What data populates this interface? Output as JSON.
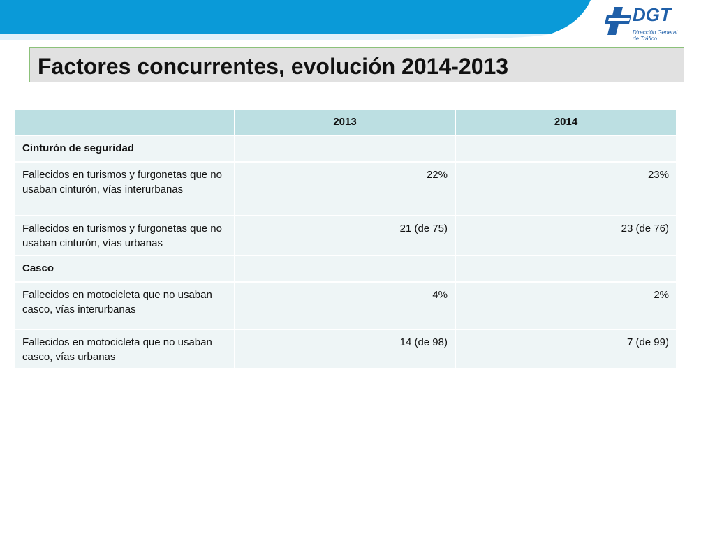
{
  "header": {
    "logo": {
      "text": "DGT",
      "subtitle_line1": "Dirección General",
      "subtitle_line2": "de Tráfico",
      "color": "#1f5fa8"
    },
    "band_color": "#0a9ad8"
  },
  "title": "Factores concurrentes, evolución 2014-2013",
  "table": {
    "columns": [
      "",
      "2013",
      "2014"
    ],
    "rows": [
      {
        "kind": "section",
        "label": "Cinturón de seguridad",
        "v2013": "",
        "v2014": ""
      },
      {
        "kind": "data",
        "label": "Fallecidos en turismos y furgonetas que no usaban cinturón, vías interurbanas",
        "v2013": "22%",
        "v2014": "23%"
      },
      {
        "kind": "data",
        "label": "Fallecidos en turismos y furgonetas que no usaban cinturón, vías urbanas",
        "v2013": "21 (de 75)",
        "v2014": "23 (de 76)"
      },
      {
        "kind": "section",
        "label": "Casco",
        "v2013": "",
        "v2014": ""
      },
      {
        "kind": "data",
        "label": "Fallecidos en motocicleta que no usaban casco, vías interurbanas",
        "v2013": "4%",
        "v2014": "2%"
      },
      {
        "kind": "data",
        "label": "Fallecidos en motocicleta que no usaban casco, vías urbanas",
        "v2013": "14 (de 98)",
        "v2014": "7 (de 99)"
      }
    ]
  }
}
